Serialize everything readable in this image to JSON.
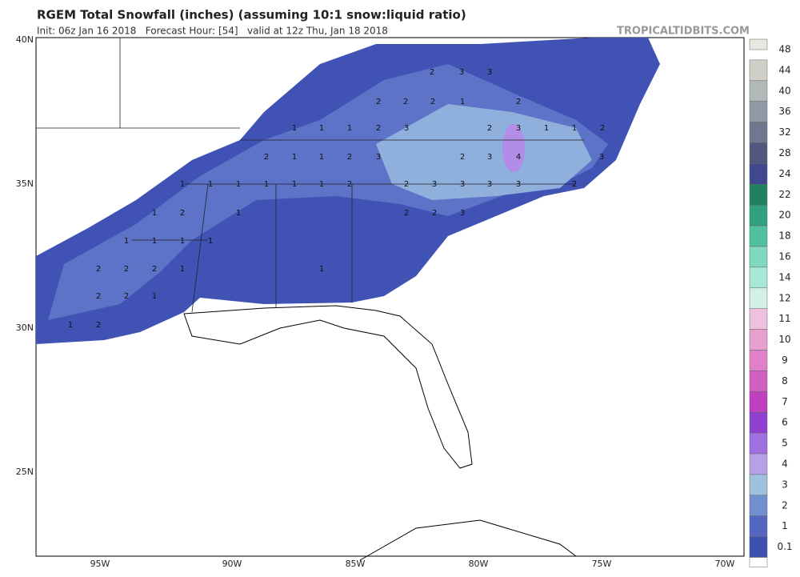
{
  "header": {
    "title": "RGEM Total Snowfall (inches) (assuming 10:1 snow:liquid ratio)",
    "subtitle": "Init: 06z Jan 16 2018   Forecast Hour: [54]   valid at 12z Thu, Jan 18 2018",
    "site": "TROPICALTIDBITS.COM"
  },
  "map": {
    "lat_labels": [
      "40N",
      "35N",
      "30N",
      "25N"
    ],
    "lon_labels": [
      "95W",
      "90W",
      "85W",
      "80W",
      "75W",
      "70W"
    ],
    "values": [
      "2",
      "3",
      "3",
      "2",
      "2",
      "2",
      "1",
      "2",
      "1",
      "1",
      "1",
      "2",
      "3",
      "2",
      "3",
      "1",
      "1",
      "2",
      "2",
      "1",
      "1",
      "2",
      "3",
      "2",
      "3",
      "4",
      "3",
      "1",
      "1",
      "1",
      "1",
      "1",
      "1",
      "2",
      "2",
      "3",
      "3",
      "3",
      "3",
      "2",
      "1",
      "2",
      "1",
      "2",
      "2",
      "3",
      "1",
      "1",
      "1",
      "1",
      "2",
      "2",
      "2",
      "1",
      "1",
      "2",
      "2",
      "1",
      "1",
      "2"
    ]
  },
  "colorbar": {
    "labels": [
      "48",
      "44",
      "40",
      "36",
      "32",
      "28",
      "24",
      "22",
      "20",
      "18",
      "16",
      "14",
      "12",
      "11",
      "10",
      "9",
      "8",
      "7",
      "6",
      "5",
      "4",
      "3",
      "2",
      "1",
      "0.1"
    ],
    "colors": [
      "#e8e8e0",
      "#d0d0c8",
      "#b0b8b8",
      "#9098a8",
      "#707890",
      "#505880",
      "#404890",
      "#208060",
      "#30a080",
      "#50c0a0",
      "#80d8c0",
      "#a8e8d8",
      "#d0f0e8",
      "#f0c0e0",
      "#e8a0d0",
      "#e080c8",
      "#d060c0",
      "#c040c0",
      "#9040d0",
      "#a070e0",
      "#b8a0e8",
      "#a0c0e0",
      "#7090d0",
      "#5566c0",
      "#4050b0",
      "#ffffff"
    ]
  }
}
